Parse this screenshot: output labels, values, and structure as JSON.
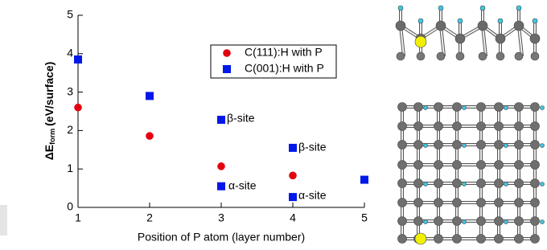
{
  "chart_data": {
    "type": "scatter",
    "xlabel": "Position of P atom (layer number)",
    "ylabel": {
      "main": "ΔE",
      "sub": "form",
      "unit": "(eV/surface)"
    },
    "xlim": [
      1,
      5
    ],
    "xticks": [
      1,
      2,
      3,
      4,
      5
    ],
    "ylim": [
      0,
      5
    ],
    "yticks": [
      0,
      1,
      2,
      3,
      4,
      5
    ],
    "legend": "upper right",
    "series": [
      {
        "name": "C(111):H with P",
        "color": "#e3000f",
        "marker": "circle",
        "x": [
          1,
          2,
          3,
          4
        ],
        "values": [
          2.6,
          1.86,
          1.07,
          0.83
        ]
      },
      {
        "name": "C(001):H with P",
        "color": "#0018e8",
        "marker": "square",
        "x": [
          1,
          2,
          3,
          3,
          4,
          4,
          5
        ],
        "values": [
          3.85,
          2.9,
          2.28,
          0.55,
          1.55,
          0.27,
          0.72
        ]
      }
    ],
    "annotations": [
      "β-site",
      "α-site",
      "β-site",
      "α-site"
    ]
  }
}
